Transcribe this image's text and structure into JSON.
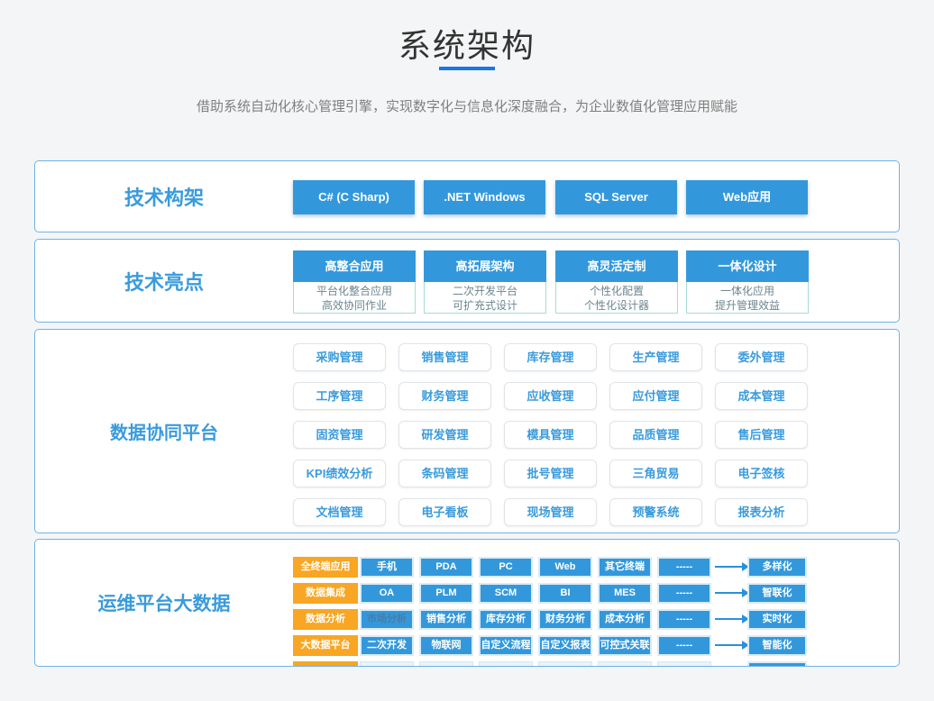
{
  "page": {
    "title": "系统架构",
    "subtitle": "借助系统自动化核心管理引擎，实现数字化与信息化深度融合，为企业数值化管理应用赋能"
  },
  "colors": {
    "accent_blue": "#3398db",
    "label_blue": "#3a9bdc",
    "underline_blue": "#1b75e9",
    "category_orange": "#f8a623",
    "section_border": "#6fb3e8",
    "page_background": "#f4f5f6"
  },
  "sections": {
    "tech_framework": {
      "label": "技术构架",
      "buttons": [
        "C# (C Sharp)",
        ".NET Windows",
        "SQL Server",
        "Web应用"
      ]
    },
    "tech_highlights": {
      "label": "技术亮点",
      "cards": [
        {
          "title": "高整合应用",
          "lines": [
            "平台化整合应用",
            "高效协同作业"
          ]
        },
        {
          "title": "高拓展架构",
          "lines": [
            "二次开发平台",
            "可扩充式设计"
          ]
        },
        {
          "title": "高灵活定制",
          "lines": [
            "个性化配置",
            "个性化设计器"
          ]
        },
        {
          "title": "一体化设计",
          "lines": [
            "一体化应用",
            "提升管理效益"
          ]
        }
      ]
    },
    "data_platform": {
      "label": "数据协同平台",
      "modules": [
        "采购管理",
        "销售管理",
        "库存管理",
        "生产管理",
        "委外管理",
        "工序管理",
        "财务管理",
        "应收管理",
        "应付管理",
        "成本管理",
        "固资管理",
        "研发管理",
        "模具管理",
        "品质管理",
        "售后管理",
        "KPI绩效分析",
        "条码管理",
        "批号管理",
        "三角贸易",
        "电子签核",
        "文档管理",
        "电子看板",
        "现场管理",
        "预警系统",
        "报表分析"
      ]
    },
    "ops_platform": {
      "label": "运维平台大数据",
      "rows": [
        {
          "category": "全终端应用",
          "items": [
            "手机",
            "PDA",
            "PC",
            "Web",
            "其它终端",
            "-----"
          ],
          "result": "多样化"
        },
        {
          "category": "数据集成",
          "items": [
            "OA",
            "PLM",
            "SCM",
            "BI",
            "MES",
            "-----"
          ],
          "result": "智联化"
        },
        {
          "category": "数据分析",
          "items": [
            "市场分析",
            "销售分析",
            "库存分析",
            "财务分析",
            "成本分析",
            "-----"
          ],
          "result": "实时化"
        },
        {
          "category": "大数据平台",
          "items": [
            "二次开发",
            "物联网",
            "自定义流程",
            "自定义报表",
            "可控式关联",
            "-----"
          ],
          "result": "智能化"
        }
      ]
    }
  }
}
